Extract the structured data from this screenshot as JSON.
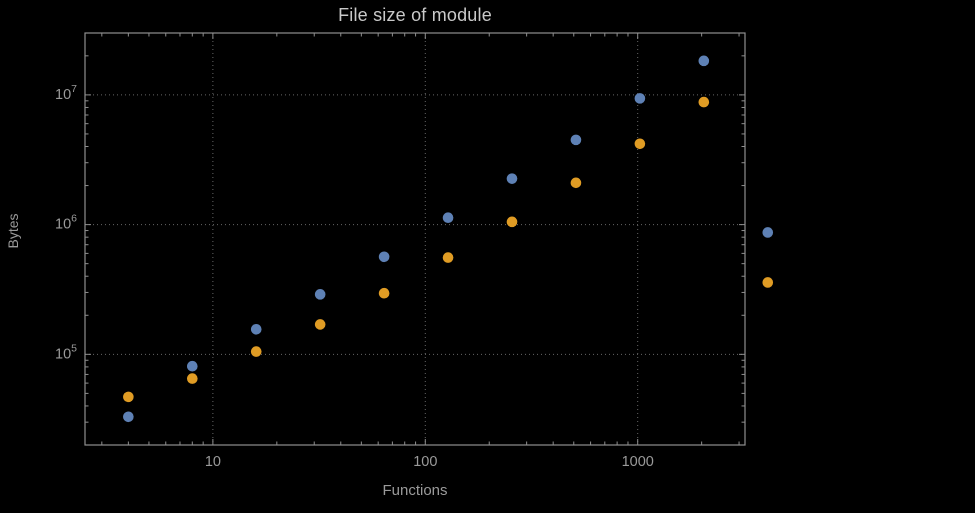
{
  "window": {
    "background": "#000000"
  },
  "chart_data": {
    "type": "scatter",
    "title": "File size of module",
    "xlabel": "Functions",
    "ylabel": "Bytes",
    "x_scale": "log",
    "y_scale": "log",
    "xlim": [
      2.5,
      3200
    ],
    "ylim": [
      20000,
      30000000
    ],
    "grid": "dotted major gridlines both axes",
    "legend_position": "none",
    "x_ticks": [
      {
        "value": 10,
        "label": "10"
      },
      {
        "value": 100,
        "label": "100"
      },
      {
        "value": 1000,
        "label": "1000"
      }
    ],
    "y_ticks": [
      {
        "value": 100000,
        "base": "10",
        "exponent": "5"
      },
      {
        "value": 1000000,
        "base": "10",
        "exponent": "6"
      },
      {
        "value": 10000000,
        "base": "10",
        "exponent": "7"
      }
    ],
    "x": [
      4,
      8,
      16,
      32,
      64,
      128,
      256,
      512,
      1024,
      2048,
      4096
    ],
    "series": [
      {
        "name": "blue-series",
        "color": "#5e81b5",
        "values": [
          33000,
          81000,
          156000,
          290000,
          565000,
          1130000,
          2260000,
          4500000,
          9400000,
          18300000,
          870000
        ]
      },
      {
        "name": "orange-series",
        "color": "#e09c24",
        "values": [
          47000,
          65000,
          105000,
          170000,
          296000,
          557000,
          1050000,
          2100000,
          4200000,
          8800000,
          358000
        ]
      }
    ],
    "colors": {
      "frame": "#8f8f8f",
      "grid": "#666666",
      "tick_labels": "#9a9a9a",
      "title": "#c9c9c9",
      "axis_labels": "#9a9a9a"
    }
  }
}
